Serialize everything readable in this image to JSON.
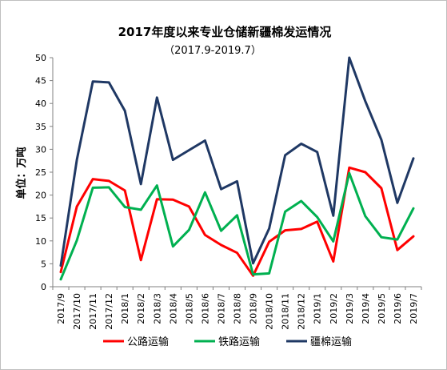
{
  "chart_data": {
    "type": "line",
    "title": "2017年度以来专业仓储新疆棉发运情况",
    "subtitle": "（2017.9-2019.7）",
    "ylabel": "单位：万吨",
    "xlabel": "",
    "ylim": [
      0,
      50
    ],
    "yticks": [
      0,
      5,
      10,
      15,
      20,
      25,
      30,
      35,
      40,
      45,
      50
    ],
    "grid": false,
    "legend_position": "bottom",
    "categories": [
      "2017/9",
      "2017/10",
      "2017/11",
      "2017/12",
      "2018/1",
      "2018/2",
      "2018/3",
      "2018/4",
      "2018/5",
      "2018/6",
      "2018/7",
      "2018/8",
      "2018/9",
      "2018/10",
      "2018/11",
      "2018/12",
      "2019/1",
      "2019/2",
      "2019/3",
      "2019/4",
      "2019/5",
      "2019/6",
      "2019/7"
    ],
    "series": [
      {
        "name": "公路运输",
        "color": "#ff0000",
        "values": [
          3.2,
          17.5,
          23.5,
          23.1,
          21.0,
          5.8,
          19.1,
          19.0,
          17.5,
          11.3,
          9.1,
          7.4,
          2.4,
          9.8,
          12.3,
          12.6,
          14.2,
          5.5,
          26.0,
          25.0,
          21.5,
          8.0,
          11.0
        ]
      },
      {
        "name": "铁路运输",
        "color": "#00b050",
        "values": [
          1.6,
          10.1,
          21.6,
          21.7,
          17.4,
          16.8,
          22.1,
          8.8,
          12.4,
          20.6,
          12.2,
          15.6,
          2.7,
          2.9,
          16.4,
          18.7,
          15.2,
          9.9,
          24.8,
          15.4,
          10.8,
          10.3,
          17.1
        ]
      },
      {
        "name": "疆棉运输",
        "color": "#1f3864",
        "values": [
          4.6,
          27.7,
          44.8,
          44.6,
          38.4,
          22.4,
          41.3,
          27.7,
          29.8,
          31.9,
          21.3,
          23.0,
          5.1,
          12.7,
          28.7,
          31.2,
          29.4,
          15.5,
          50.0,
          40.5,
          32.1,
          18.3,
          28.0
        ]
      }
    ]
  }
}
